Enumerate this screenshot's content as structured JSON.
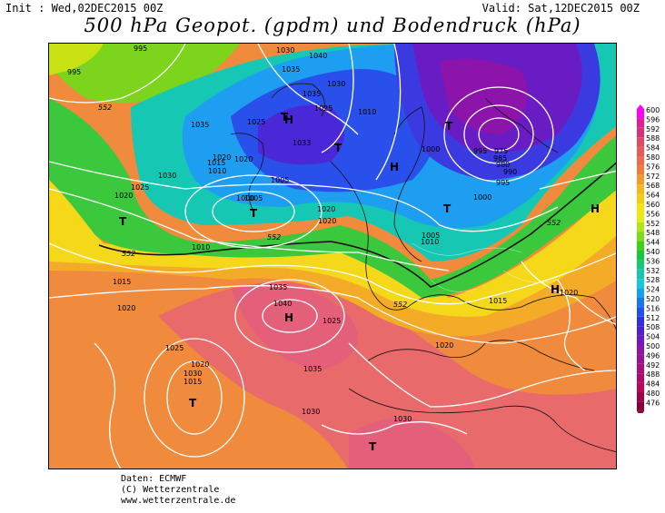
{
  "header": {
    "init": "Init : Wed,02DEC2015 00Z",
    "valid": "Valid: Sat,12DEC2015 00Z",
    "title": "500 hPa Geopot. (gpdm) und Bodendruck (hPa)"
  },
  "isobar_labels": [
    "995",
    "1030",
    "1035",
    "1040",
    "995",
    "1030",
    "1035",
    "1025",
    "1020",
    "1035",
    "1025",
    "1033",
    "1005",
    "1015",
    "1010",
    "1020",
    "1030",
    "1025",
    "1020",
    "1000",
    "995",
    "1010",
    "1005",
    "1020",
    "1020",
    "1000",
    "975",
    "985",
    "980",
    "990",
    "995",
    "1000",
    "1010",
    "1005",
    "1010",
    "1015",
    "1025",
    "1030",
    "1035",
    "1040",
    "1020",
    "1025",
    "1020",
    "1015",
    "1035",
    "1030",
    "1020",
    "1030",
    "1015",
    "1020"
  ],
  "height_labels": [
    "552",
    "552",
    "552",
    "552",
    "552"
  ],
  "pressure_centers": [
    "T",
    "H",
    "T",
    "T",
    "H",
    "T",
    "T",
    "T",
    "H",
    "T",
    "H",
    "H",
    "T"
  ],
  "legend": {
    "values": [
      "600",
      "596",
      "592",
      "588",
      "584",
      "580",
      "576",
      "572",
      "568",
      "564",
      "560",
      "556",
      "552",
      "548",
      "544",
      "540",
      "536",
      "532",
      "528",
      "524",
      "520",
      "516",
      "512",
      "508",
      "504",
      "500",
      "496",
      "492",
      "488",
      "484",
      "480",
      "476"
    ],
    "colors": [
      "#ff00ff",
      "#e0208e",
      "#d8307a",
      "#e04a66",
      "#e85a58",
      "#ee6c4c",
      "#f07e3a",
      "#f29a2c",
      "#f5b61e",
      "#f6cc10",
      "#f8e210",
      "#e2ee14",
      "#b0e614",
      "#7cdc16",
      "#3cd018",
      "#14c83c",
      "#14c876",
      "#14c8b0",
      "#14c8e0",
      "#14a0f0",
      "#1478f0",
      "#2050f0",
      "#3030e0",
      "#5020d0",
      "#7018c0",
      "#8a14ac",
      "#9a1098",
      "#a80c80",
      "#b4086c",
      "#c00458",
      "#a00048",
      "#880038"
    ]
  },
  "credits": [
    "Daten: ECMWF",
    "(C) Wetterzentrale",
    "www.wetterzentrale.de"
  ]
}
